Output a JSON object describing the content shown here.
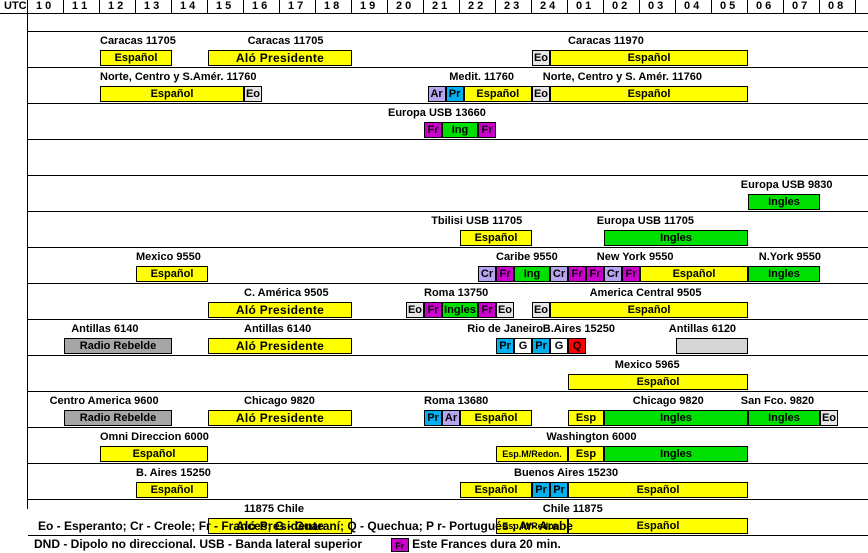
{
  "colors": {
    "espanol": "#ffff00",
    "ingles": "#00e000",
    "frances": "#cc00cc",
    "eo": "#e6e6e6",
    "creole": "#b7a5f0",
    "arabe": "#b7a5f0",
    "portugues": "#00b0f0",
    "guarani": "#ffffff",
    "quechua": "#ff0000",
    "rebelde": "#a6a6a6",
    "blank": "#d6d6d6"
  },
  "header": {
    "utc_label": "UTC",
    "hours": [
      "1 0",
      "1 1",
      "1 2",
      "1 3",
      "1 4",
      "1 5",
      "1 6",
      "1 7",
      "1 8",
      "1 9",
      "2 0",
      "2 1",
      "2 2",
      "2 3",
      "2 4",
      "0 1",
      "0 2",
      "0 3",
      "0 4",
      "0 5",
      "0 6",
      "0 7",
      "0 8"
    ]
  },
  "labels": [
    {
      "text": "Caracas 11705",
      "row": 0,
      "col": 2.0
    },
    {
      "text": "Caracas 11705",
      "row": 0,
      "col": 6.1
    },
    {
      "text": "Caracas 11970",
      "row": 0,
      "col": 15.0
    },
    {
      "text": "Norte, Centro y S.Amér. 11760",
      "row": 1,
      "col": 2.0
    },
    {
      "text": "Medit. 11760",
      "row": 1,
      "col": 11.7
    },
    {
      "text": "Norte, Centro y S. Amér. 11760",
      "row": 1,
      "col": 14.3
    },
    {
      "text": "Europa USB  13660",
      "row": 2,
      "col": 10.0
    },
    {
      "text": "Europa USB  9830",
      "row": 4,
      "col": 19.8
    },
    {
      "text": "Tbilisi USB  11705",
      "row": 5,
      "col": 11.2
    },
    {
      "text": "Europa USB 11705",
      "row": 5,
      "col": 15.8
    },
    {
      "text": "Mexico 9550",
      "row": 6,
      "col": 3.0
    },
    {
      "text": "Caribe 9550",
      "row": 6,
      "col": 13.0
    },
    {
      "text": "New York 9550",
      "row": 6,
      "col": 15.8
    },
    {
      "text": "N.York 9550",
      "row": 6,
      "col": 20.3
    },
    {
      "text": "C. América 9505",
      "row": 7,
      "col": 6.0
    },
    {
      "text": "Roma  13750",
      "row": 7,
      "col": 11.0
    },
    {
      "text": "America Central  9505",
      "row": 7,
      "col": 15.6
    },
    {
      "text": "Antillas 6140",
      "row": 8,
      "col": 1.2
    },
    {
      "text": "Antillas 6140",
      "row": 8,
      "col": 6.0
    },
    {
      "text": "Rio de Janeiro",
      "row": 8,
      "col": 12.2
    },
    {
      "text": "B.Aires 15250",
      "row": 8,
      "col": 14.3
    },
    {
      "text": "Antillas 6120",
      "row": 8,
      "col": 17.8
    },
    {
      "text": "Mexico  5965",
      "row": 9,
      "col": 16.3
    },
    {
      "text": "Centro America  9600",
      "row": 10,
      "col": 0.6
    },
    {
      "text": "Chicago 9820",
      "row": 10,
      "col": 6.0
    },
    {
      "text": "Roma  13680",
      "row": 10,
      "col": 11.0
    },
    {
      "text": "Chicago  9820",
      "row": 10,
      "col": 16.8
    },
    {
      "text": "San Fco. 9820",
      "row": 10,
      "col": 19.8
    },
    {
      "text": "Omni Direccion  6000",
      "row": 11,
      "col": 2.0
    },
    {
      "text": "Washington 6000",
      "row": 11,
      "col": 14.4
    },
    {
      "text": "B. Aires 15250",
      "row": 12,
      "col": 3.0
    },
    {
      "text": "Buenos Aires 15230",
      "row": 12,
      "col": 13.5
    },
    {
      "text": "11875 Chile",
      "row": 13,
      "col": 6.0
    },
    {
      "text": "Chile  11875",
      "row": 13,
      "col": 14.3
    }
  ],
  "blocks": [
    {
      "row": 0,
      "start": 2,
      "end": 4,
      "text": "Español",
      "color": "espanol"
    },
    {
      "row": 0,
      "start": 5,
      "end": 9,
      "text": "Aló  Presidente",
      "color": "espanol",
      "big": true
    },
    {
      "row": 0,
      "start": 14,
      "end": 14.5,
      "text": "Eo",
      "color": "eo"
    },
    {
      "row": 0,
      "start": 14.5,
      "end": 20,
      "text": "Español",
      "color": "espanol"
    },
    {
      "row": 1,
      "start": 2,
      "end": 6,
      "text": "Español",
      "color": "espanol"
    },
    {
      "row": 1,
      "start": 6,
      "end": 6.5,
      "text": "Eo",
      "color": "eo"
    },
    {
      "row": 1,
      "start": 11.1,
      "end": 11.6,
      "text": "Ar",
      "color": "arabe"
    },
    {
      "row": 1,
      "start": 11.6,
      "end": 12.1,
      "text": "Pr",
      "color": "portugues"
    },
    {
      "row": 1,
      "start": 12.1,
      "end": 14,
      "text": "Español",
      "color": "espanol"
    },
    {
      "row": 1,
      "start": 14,
      "end": 14.5,
      "text": "Eo",
      "color": "eo"
    },
    {
      "row": 1,
      "start": 14.5,
      "end": 20,
      "text": "Español",
      "color": "espanol"
    },
    {
      "row": 2,
      "start": 11,
      "end": 11.5,
      "text": "Fr",
      "color": "frances"
    },
    {
      "row": 2,
      "start": 11.5,
      "end": 12.5,
      "text": "Ing",
      "color": "ingles"
    },
    {
      "row": 2,
      "start": 12.5,
      "end": 13,
      "text": "Fr",
      "color": "frances"
    },
    {
      "row": 4,
      "start": 20,
      "end": 22,
      "text": "Ingles",
      "color": "ingles"
    },
    {
      "row": 5,
      "start": 12,
      "end": 14,
      "text": "Español",
      "color": "espanol"
    },
    {
      "row": 5,
      "start": 16,
      "end": 20,
      "text": "Ingles",
      "color": "ingles"
    },
    {
      "row": 6,
      "start": 3,
      "end": 5,
      "text": "Español",
      "color": "espanol"
    },
    {
      "row": 6,
      "start": 12.5,
      "end": 13,
      "text": "Cr",
      "color": "creole"
    },
    {
      "row": 6,
      "start": 13,
      "end": 13.5,
      "text": "Fr",
      "color": "frances"
    },
    {
      "row": 6,
      "start": 13.5,
      "end": 14.5,
      "text": "Ing",
      "color": "ingles"
    },
    {
      "row": 6,
      "start": 14.5,
      "end": 15,
      "text": "Cr",
      "color": "creole"
    },
    {
      "row": 6,
      "start": 15,
      "end": 15.5,
      "text": "Fr",
      "color": "frances"
    },
    {
      "row": 6,
      "start": 15.5,
      "end": 16,
      "text": "Fr",
      "color": "frances"
    },
    {
      "row": 6,
      "start": 16,
      "end": 16.5,
      "text": "Cr",
      "color": "creole"
    },
    {
      "row": 6,
      "start": 16.5,
      "end": 17,
      "text": "Fr",
      "color": "frances"
    },
    {
      "row": 6,
      "start": 17,
      "end": 20,
      "text": "Español",
      "color": "espanol"
    },
    {
      "row": 6,
      "start": 20,
      "end": 22,
      "text": "Ingles",
      "color": "ingles"
    },
    {
      "row": 7,
      "start": 5,
      "end": 9,
      "text": "Aló  Presidente",
      "color": "espanol",
      "big": true
    },
    {
      "row": 7,
      "start": 10.5,
      "end": 11,
      "text": "Eo",
      "color": "eo"
    },
    {
      "row": 7,
      "start": 11,
      "end": 11.5,
      "text": "Fr",
      "color": "frances"
    },
    {
      "row": 7,
      "start": 11.5,
      "end": 12.5,
      "text": "Ingles",
      "color": "ingles"
    },
    {
      "row": 7,
      "start": 12.5,
      "end": 13,
      "text": "Fr",
      "color": "frances"
    },
    {
      "row": 7,
      "start": 13,
      "end": 13.5,
      "text": "Eo",
      "color": "eo"
    },
    {
      "row": 7,
      "start": 14,
      "end": 14.5,
      "text": "Eo",
      "color": "eo"
    },
    {
      "row": 7,
      "start": 14.5,
      "end": 20,
      "text": "Español",
      "color": "espanol"
    },
    {
      "row": 8,
      "start": 1,
      "end": 4,
      "text": "Radio Rebelde",
      "color": "rebelde"
    },
    {
      "row": 8,
      "start": 5,
      "end": 9,
      "text": "Aló  Presidente",
      "color": "espanol",
      "big": true
    },
    {
      "row": 8,
      "start": 13,
      "end": 13.5,
      "text": "Pr",
      "color": "portugues"
    },
    {
      "row": 8,
      "start": 13.5,
      "end": 14,
      "text": "G",
      "color": "guarani"
    },
    {
      "row": 8,
      "start": 14,
      "end": 14.5,
      "text": "Pr",
      "color": "portugues"
    },
    {
      "row": 8,
      "start": 14.5,
      "end": 15,
      "text": "G",
      "color": "guarani"
    },
    {
      "row": 8,
      "start": 15,
      "end": 15.5,
      "text": "Q",
      "color": "quechua"
    },
    {
      "row": 8,
      "start": 18,
      "end": 20,
      "text": "",
      "color": "blank"
    },
    {
      "row": 9,
      "start": 15,
      "end": 20,
      "text": "Español",
      "color": "espanol"
    },
    {
      "row": 10,
      "start": 1,
      "end": 4,
      "text": "Radio Rebelde",
      "color": "rebelde"
    },
    {
      "row": 10,
      "start": 5,
      "end": 9,
      "text": "Aló  Presidente",
      "color": "espanol",
      "big": true
    },
    {
      "row": 10,
      "start": 11,
      "end": 11.5,
      "text": "Pr",
      "color": "portugues"
    },
    {
      "row": 10,
      "start": 11.5,
      "end": 12,
      "text": "Ar",
      "color": "arabe"
    },
    {
      "row": 10,
      "start": 12,
      "end": 14,
      "text": "Español",
      "color": "espanol"
    },
    {
      "row": 10,
      "start": 15,
      "end": 16,
      "text": "Esp",
      "color": "espanol"
    },
    {
      "row": 10,
      "start": 16,
      "end": 20,
      "text": "Ingles",
      "color": "ingles"
    },
    {
      "row": 10,
      "start": 20,
      "end": 22,
      "text": "Ingles",
      "color": "ingles"
    },
    {
      "row": 10,
      "start": 22,
      "end": 22.5,
      "text": "Eo",
      "color": "eo"
    },
    {
      "row": 11,
      "start": 2,
      "end": 5,
      "text": "Español",
      "color": "espanol"
    },
    {
      "row": 11,
      "start": 13,
      "end": 15,
      "text": "Esp.M/Redon.",
      "color": "espanol",
      "tiny": true
    },
    {
      "row": 11,
      "start": 15,
      "end": 16,
      "text": "Esp",
      "color": "espanol"
    },
    {
      "row": 11,
      "start": 16,
      "end": 20,
      "text": "Ingles",
      "color": "ingles"
    },
    {
      "row": 12,
      "start": 3,
      "end": 5,
      "text": "Español",
      "color": "espanol"
    },
    {
      "row": 12,
      "start": 12,
      "end": 14,
      "text": "Español",
      "color": "espanol"
    },
    {
      "row": 12,
      "start": 14,
      "end": 14.5,
      "text": "Pr",
      "color": "portugues"
    },
    {
      "row": 12,
      "start": 14.5,
      "end": 15,
      "text": "Pr",
      "color": "portugues"
    },
    {
      "row": 12,
      "start": 15,
      "end": 20,
      "text": "Español",
      "color": "espanol"
    },
    {
      "row": 13,
      "start": 5,
      "end": 9,
      "text": "Aló  Presidente",
      "color": "espanol",
      "big": true
    },
    {
      "row": 13,
      "start": 13,
      "end": 15,
      "text": "Esp.M/Redon.",
      "color": "espanol",
      "tiny": true
    },
    {
      "row": 13,
      "start": 15,
      "end": 20,
      "text": "Español",
      "color": "espanol"
    }
  ],
  "legend": {
    "line1": "Eo - Esperanto; Cr - Creole; Fr - Frances; G - Guaraní; Q - Quechua; P r- Portugués ;   Ar- Arabe",
    "line2a": "DND - Dipolo no direccional.    USB - Banda lateral superior",
    "swatch_text": "Fr",
    "line2b": "Este Frances dura 20 min."
  }
}
